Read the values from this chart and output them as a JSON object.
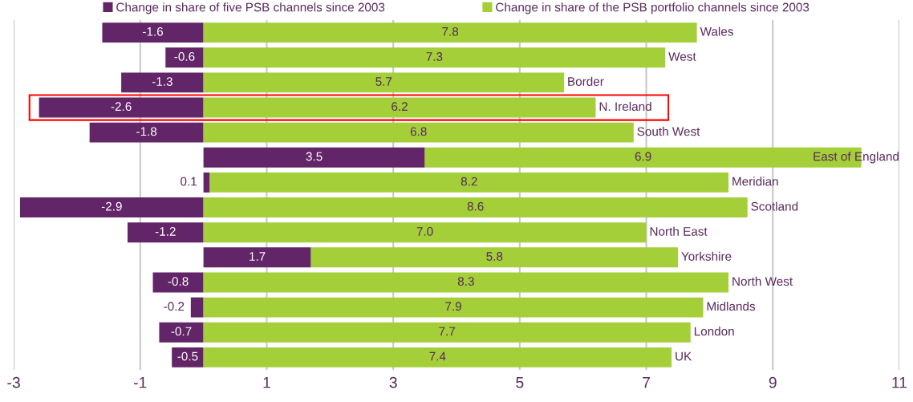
{
  "chart_data": {
    "type": "bar",
    "orientation": "horizontal",
    "stacked": true,
    "categories": [
      "Wales",
      "West",
      "Border",
      "N. Ireland",
      "South West",
      "East of England",
      "Meridian",
      "Scotland",
      "North East",
      "Yorkshire",
      "North West",
      "Midlands",
      "London",
      "UK"
    ],
    "series": [
      {
        "name": "Change in share of five PSB channels since 2003",
        "color": "#622567",
        "values": [
          -1.6,
          -0.6,
          -1.3,
          -2.6,
          -1.8,
          3.5,
          0.1,
          -2.9,
          -1.2,
          1.7,
          -0.8,
          -0.2,
          -0.7,
          -0.5
        ],
        "value_labels": [
          "-1.6",
          "-0.6",
          "-1.3",
          "-2.6",
          "-1.8",
          "3.5",
          "0.1",
          "-2.9",
          "-1.2",
          "1.7",
          "-0.8",
          "-0.2",
          "-0.7",
          "-0.5"
        ]
      },
      {
        "name": "Change in share of the PSB portfolio channels since 2003",
        "color": "#a4cf38",
        "values": [
          7.8,
          7.3,
          5.7,
          6.2,
          6.8,
          6.9,
          8.2,
          8.6,
          7.0,
          5.8,
          8.3,
          7.9,
          7.7,
          7.4
        ],
        "value_labels": [
          "7.8",
          "7.3",
          "5.7",
          "6.2",
          "6.8",
          "6.9",
          "8.2",
          "8.6",
          "7.0",
          "5.8",
          "8.3",
          "7.9",
          "7.7",
          "7.4"
        ]
      }
    ],
    "xlim": [
      -3,
      11
    ],
    "xticks": [
      -3,
      -1,
      1,
      3,
      5,
      7,
      9,
      11
    ],
    "grid": "x",
    "legend": "top"
  }
}
